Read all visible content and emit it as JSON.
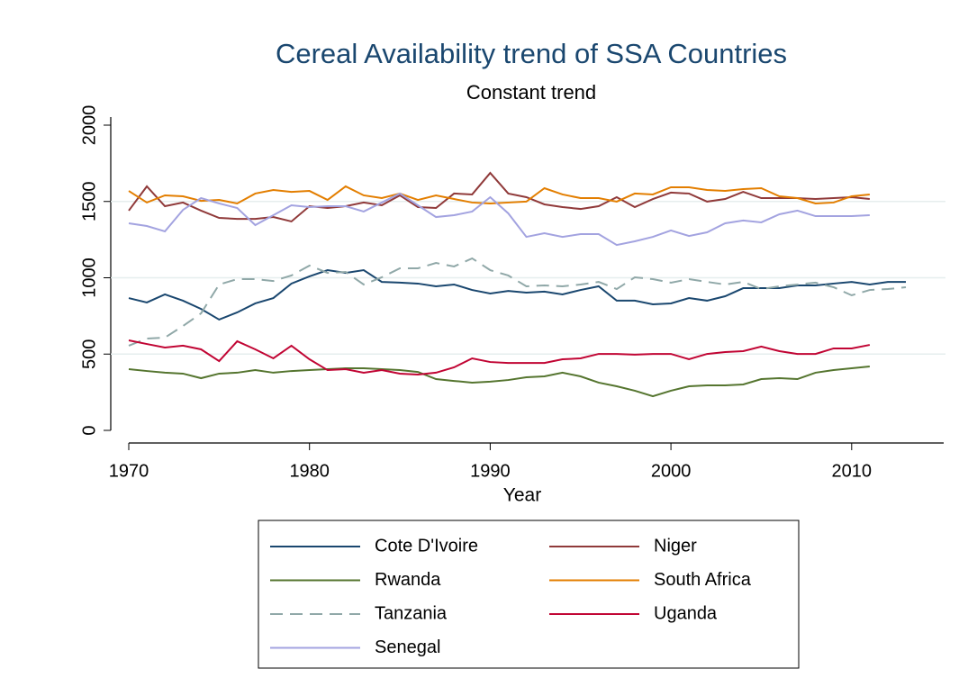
{
  "chart_data": {
    "type": "line",
    "title": "Cereal Availability trend of SSA Countries",
    "subtitle": "Constant trend",
    "x_label": "Year",
    "x": [
      1970,
      1971,
      1972,
      1973,
      1974,
      1975,
      1976,
      1977,
      1978,
      1979,
      1980,
      1981,
      1982,
      1983,
      1984,
      1985,
      1986,
      1987,
      1988,
      1989,
      1990,
      1991,
      1992,
      1993,
      1994,
      1995,
      1996,
      1997,
      1998,
      1999,
      2000,
      2001,
      2002,
      2003,
      2004,
      2005,
      2006,
      2007,
      2008,
      2009,
      2010,
      2011,
      2012,
      2013
    ],
    "xlim": [
      1970,
      2013
    ],
    "xticks": [
      1970,
      1980,
      1990,
      2000,
      2010
    ],
    "ylim": [
      0,
      2000
    ],
    "yticks": [
      0,
      500,
      1000,
      1500,
      2000
    ],
    "grid": true,
    "series": [
      {
        "name": "Cote D'Ivoire",
        "color": "#1a476f",
        "dash": false,
        "values": [
          867,
          838,
          891,
          850,
          796,
          726,
          773,
          832,
          867,
          962,
          1009,
          1050,
          1032,
          1050,
          973,
          968,
          962,
          944,
          956,
          920,
          897,
          914,
          903,
          909,
          891,
          920,
          944,
          850,
          850,
          826,
          832,
          867,
          850,
          879,
          932,
          932,
          932,
          950,
          950,
          962,
          973,
          956,
          973,
          973
        ]
      },
      {
        "name": "Niger",
        "color": "#903a3a",
        "dash": false,
        "values": [
          1440,
          1599,
          1469,
          1493,
          1440,
          1392,
          1386,
          1386,
          1398,
          1369,
          1469,
          1457,
          1469,
          1493,
          1475,
          1540,
          1463,
          1457,
          1552,
          1546,
          1687,
          1552,
          1528,
          1481,
          1463,
          1451,
          1469,
          1528,
          1463,
          1516,
          1558,
          1552,
          1499,
          1516,
          1563,
          1522,
          1522,
          1522,
          1516,
          1522,
          1528,
          1516,
          null,
          null
        ]
      },
      {
        "name": "Rwanda",
        "color": "#55752f",
        "dash": false,
        "values": [
          401,
          389,
          378,
          372,
          342,
          372,
          378,
          395,
          378,
          389,
          395,
          401,
          407,
          407,
          401,
          395,
          383,
          336,
          324,
          313,
          319,
          330,
          348,
          354,
          378,
          354,
          313,
          289,
          260,
          224,
          260,
          289,
          295,
          295,
          301,
          336,
          342,
          336,
          378,
          395,
          407,
          419,
          null,
          null
        ]
      },
      {
        "name": "South Africa",
        "color": "#e37e00",
        "dash": false,
        "values": [
          1569,
          1493,
          1540,
          1534,
          1504,
          1510,
          1487,
          1552,
          1575,
          1563,
          1569,
          1510,
          1599,
          1540,
          1522,
          1552,
          1510,
          1540,
          1516,
          1493,
          1487,
          1493,
          1499,
          1587,
          1546,
          1522,
          1522,
          1499,
          1552,
          1546,
          1593,
          1593,
          1575,
          1569,
          1581,
          1587,
          1534,
          1522,
          1487,
          1493,
          1534,
          1546,
          null,
          null
        ]
      },
      {
        "name": "Tanzania",
        "color": "#90a8a8",
        "dash": true,
        "values": [
          555,
          602,
          608,
          684,
          767,
          956,
          991,
          991,
          979,
          1015,
          1080,
          1032,
          1038,
          956,
          1003,
          1062,
          1062,
          1097,
          1074,
          1127,
          1050,
          1015,
          944,
          950,
          944,
          956,
          973,
          926,
          1003,
          991,
          968,
          991,
          973,
          956,
          973,
          926,
          944,
          956,
          968,
          938,
          885,
          920,
          926,
          938
        ]
      },
      {
        "name": "Uganda",
        "color": "#c10534",
        "dash": false,
        "values": [
          590,
          566,
          543,
          555,
          531,
          454,
          584,
          531,
          472,
          555,
          466,
          395,
          401,
          378,
          395,
          372,
          366,
          378,
          413,
          472,
          448,
          442,
          442,
          442,
          466,
          472,
          501,
          501,
          496,
          501,
          501,
          466,
          501,
          513,
          519,
          549,
          519,
          501,
          501,
          537,
          537,
          560,
          null,
          null
        ]
      },
      {
        "name": "Senegal",
        "color": "#a3a3e0",
        "dash": false,
        "values": [
          1357,
          1339,
          1304,
          1445,
          1522,
          1487,
          1457,
          1345,
          1410,
          1475,
          1463,
          1469,
          1469,
          1434,
          1493,
          1552,
          1475,
          1398,
          1410,
          1434,
          1528,
          1422,
          1268,
          1292,
          1268,
          1286,
          1286,
          1215,
          1239,
          1268,
          1310,
          1274,
          1298,
          1357,
          1375,
          1363,
          1416,
          1440,
          1404,
          1404,
          1404,
          1410,
          null,
          null
        ]
      }
    ]
  }
}
